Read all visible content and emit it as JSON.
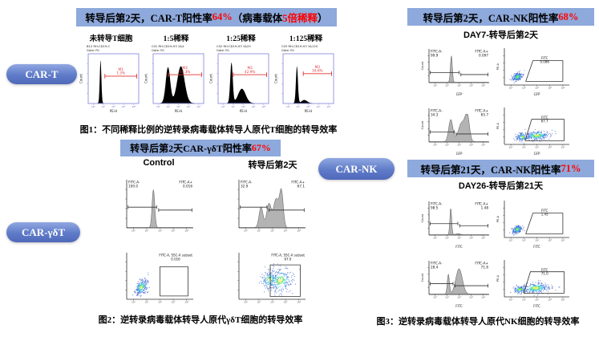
{
  "pills": {
    "car_t": "CAR-T",
    "car_gdt": "CAR-γδT",
    "car_nk": "CAR-NK"
  },
  "fig1": {
    "title_parts": {
      "p1": "转导后第2天，CAR-T阳性率",
      "p2": "64%",
      "p3": "（病毒载体",
      "p4": "5倍稀释",
      "p5": "）"
    },
    "col_labels": [
      "未转导T细胞",
      "1:5稀释",
      "1:25稀释",
      "1:125稀释"
    ],
    "caption": "图1：不同稀释比例的逆转录病毒载体转导人原代T细胞的转导效率"
  },
  "fig2": {
    "title_parts": {
      "p1": "转导后第2天CAR-γδT阳性率",
      "p2": "67%"
    },
    "col_control": "Control",
    "col_day2": "转导后第2天",
    "caption": "图2：逆转录病毒载体转导人原代γδT细胞的转导效率"
  },
  "fig3": {
    "title_day2_parts": {
      "p1": "转导后第2天，CAR-NK阳性率",
      "p2": "68%"
    },
    "subtitle_day7": "DAY7-转导后第2天",
    "title_day21_parts": {
      "p1": "转导后第21天，CAR-NK阳性率",
      "p2": "71%"
    },
    "subtitle_day26": "DAY26-转导后第21天",
    "caption": "图3：逆转录病毒载体转导人原代NK细胞的转导效率"
  },
  "colors": {
    "title_bar_bg": "#8ea9db",
    "highlight_red": "#fe0000",
    "pill_blue": "#5f7bc8",
    "hist_red_frame": "#8d8de0",
    "marker_red": "#e03232",
    "gray_fill": "#b3b3b3"
  },
  "chart_data": {
    "type": "flow-cytometry-figure",
    "panels": {
      "t1": {
        "kind": "hist_red",
        "title": "B12 RH-CD19-C",
        "gate": "Gate: R1",
        "marker": "M1",
        "pct": "1.3%",
        "xlabel": "PE-H",
        "ylabel": "Count",
        "peaks": [
          [
            0.24,
            0.016,
            0.96
          ]
        ],
        "mx": [
          0.33,
          0.96
        ],
        "my": 0.45
      },
      "t2": {
        "kind": "hist_red",
        "title": "C01 RH-CD19-H3 1&4",
        "gate": "Gate: R1",
        "marker": "M3",
        "pct": "64.3%",
        "xlabel": "PE-H",
        "ylabel": "Count",
        "peaks": [
          [
            0.29,
            0.045,
            0.8
          ],
          [
            0.55,
            0.075,
            0.82
          ]
        ],
        "mx": [
          0.3,
          0.96
        ],
        "my": 0.42
      },
      "t3": {
        "kind": "hist_red",
        "title": "C02 RH-CD19-H3 1&25",
        "gate": "Gate: R1",
        "marker": "M3",
        "pct": "42.9%",
        "xlabel": "PE-H",
        "ylabel": "Count",
        "peaks": [
          [
            0.26,
            0.025,
            0.9
          ],
          [
            0.47,
            0.075,
            0.32
          ]
        ],
        "mx": [
          0.3,
          0.96
        ],
        "my": 0.42
      },
      "t4": {
        "kind": "hist_red",
        "title": "C03 RH-CD19-H3 1&125",
        "gate": "Gate: R1",
        "marker": "M3",
        "pct": "16.6%",
        "xlabel": "PE-H",
        "ylabel": "Count",
        "peaks": [
          [
            0.27,
            0.02,
            0.82
          ],
          [
            0.42,
            0.055,
            0.07
          ]
        ],
        "mx": [
          0.4,
          0.96
        ],
        "my": 0.4
      },
      "g1": {
        "kind": "hist_gray",
        "neg_label": "FITC-A-",
        "neg": "100.0",
        "pos_label": "FITC-A+",
        "pos": "0.016",
        "peaks": [
          [
            0.4,
            0.02,
            0.96
          ]
        ],
        "gates": [
          [
            0.02,
            0.45,
            0.57
          ],
          [
            0.48,
            0.98,
            0.63
          ]
        ],
        "xlabel": "",
        "ylabel": ""
      },
      "g2": {
        "kind": "hist_gray",
        "neg_label": "FITC-A-",
        "neg": "32.9",
        "pos_label": "FITC-A+",
        "pos": "67.1",
        "peaks": [
          [
            0.33,
            0.03,
            0.52
          ],
          [
            0.45,
            0.035,
            0.6
          ],
          [
            0.56,
            0.04,
            0.72
          ],
          [
            0.64,
            0.028,
            0.88
          ]
        ],
        "gates": [
          [
            0.02,
            0.42,
            0.57
          ],
          [
            0.45,
            0.98,
            0.63
          ]
        ],
        "xlabel": "",
        "ylabel": ""
      },
      "s1": {
        "kind": "scatter",
        "label": "FITC-A, SSC-A subset",
        "value": "0.016",
        "anchor": "end",
        "seed": 11,
        "clusters": [
          [
            0.22,
            0.26,
            0.045,
            0.08,
            0.6,
            260
          ]
        ],
        "gate": [
          [
            0.5,
            0.3
          ],
          [
            0.92,
            0.3
          ],
          [
            0.92,
            0.93
          ],
          [
            0.5,
            0.93
          ]
        ],
        "xlabel": "",
        "ylabel": ""
      },
      "s2": {
        "kind": "scatter",
        "label": "FITC-A, SSC-A subset",
        "value": "67.0",
        "anchor": "end",
        "seed": 23,
        "clusters": [
          [
            0.46,
            0.42,
            0.06,
            0.1,
            0.3,
            180
          ],
          [
            0.62,
            0.4,
            0.09,
            0.13,
            0.2,
            260
          ]
        ],
        "gate": [
          [
            0.47,
            0.26
          ],
          [
            0.92,
            0.26
          ],
          [
            0.92,
            0.94
          ],
          [
            0.47,
            0.94
          ]
        ],
        "xlabel": "",
        "ylabel": ""
      },
      "n1h": {
        "kind": "hist_gray",
        "neg_label": "FITC-A-",
        "neg": "99.9",
        "pos_label": "FITC-A+",
        "pos": "0.097",
        "peaks": [
          [
            0.37,
            0.016,
            0.96
          ]
        ],
        "gates": [
          [
            0.02,
            0.5,
            0.7
          ],
          [
            0.53,
            0.98,
            0.76
          ]
        ],
        "xlabel": "GFP",
        "ylabel": "Count"
      },
      "n1s": {
        "kind": "scatter",
        "label": "FITC",
        "value": "0.086",
        "anchor": "mid",
        "lx": 0.62,
        "ly": 0.3,
        "seed": 31,
        "clusters": [
          [
            0.2,
            0.22,
            0.035,
            0.05,
            0.5,
            240
          ]
        ],
        "gate": [
          [
            0.44,
            0.34
          ],
          [
            0.9,
            0.34
          ],
          [
            0.9,
            0.9
          ],
          [
            0.33,
            0.9
          ]
        ],
        "xlabel": "GFP",
        "ylabel": "PE-A"
      },
      "n2h": {
        "kind": "hist_gray",
        "neg_label": "FITC-A-",
        "neg": "34.3",
        "pos_label": "FITC-A+",
        "pos": "65.7",
        "peaks": [
          [
            0.36,
            0.035,
            0.8
          ],
          [
            0.55,
            0.06,
            0.7
          ],
          [
            0.64,
            0.035,
            0.82
          ]
        ],
        "gates": [
          [
            0.02,
            0.42,
            0.7
          ],
          [
            0.45,
            0.98,
            0.76
          ]
        ],
        "xlabel": "GFP",
        "ylabel": "Count"
      },
      "n2s": {
        "kind": "scatter",
        "label": "FITC",
        "value": "67.7",
        "anchor": "mid",
        "lx": 0.62,
        "ly": 0.3,
        "seed": 37,
        "clusters": [
          [
            0.28,
            0.2,
            0.05,
            0.05,
            0.2,
            150
          ],
          [
            0.5,
            0.24,
            0.1,
            0.06,
            0.1,
            280
          ]
        ],
        "gate": [
          [
            0.42,
            0.32
          ],
          [
            0.92,
            0.32
          ],
          [
            0.92,
            0.9
          ],
          [
            0.32,
            0.9
          ]
        ],
        "xlabel": "GFP",
        "ylabel": "PE-A"
      },
      "n3h": {
        "kind": "hist_gray",
        "neg_label": "FITC-A-",
        "neg": "98.5",
        "pos_label": "FITC-A+",
        "pos": "1.48",
        "peaks": [
          [
            0.36,
            0.015,
            0.96
          ],
          [
            0.48,
            0.04,
            0.04
          ]
        ],
        "gates": [
          [
            0.02,
            0.48,
            0.66
          ],
          [
            0.51,
            0.98,
            0.72
          ]
        ],
        "xlabel": "FITC",
        "ylabel": "Count"
      },
      "n3s": {
        "kind": "scatter",
        "label": "FITC",
        "value": "1.45",
        "anchor": "mid",
        "lx": 0.62,
        "ly": 0.3,
        "seed": 41,
        "clusters": [
          [
            0.2,
            0.22,
            0.035,
            0.05,
            0.5,
            240
          ]
        ],
        "gate": [
          [
            0.44,
            0.34
          ],
          [
            0.9,
            0.34
          ],
          [
            0.9,
            0.9
          ],
          [
            0.33,
            0.9
          ]
        ],
        "xlabel": "FITC",
        "ylabel": "PE-A"
      },
      "n4h": {
        "kind": "hist_gray",
        "neg_label": "FITC-A-",
        "neg": "28.4",
        "pos_label": "FITC-A+",
        "pos": "71.6",
        "peaks": [
          [
            0.32,
            0.018,
            0.72
          ],
          [
            0.5,
            0.055,
            0.92
          ]
        ],
        "gates": [
          [
            0.02,
            0.4,
            0.68
          ],
          [
            0.43,
            0.98,
            0.74
          ]
        ],
        "xlabel": "FITC",
        "ylabel": "Count"
      },
      "n4s": {
        "kind": "scatter",
        "label": "FITC",
        "value": "71.0",
        "anchor": "mid",
        "lx": 0.62,
        "ly": 0.3,
        "seed": 43,
        "clusters": [
          [
            0.24,
            0.2,
            0.05,
            0.05,
            0.2,
            140
          ],
          [
            0.48,
            0.24,
            0.11,
            0.07,
            0.1,
            300
          ]
        ],
        "gate": [
          [
            0.4,
            0.32
          ],
          [
            0.92,
            0.32
          ],
          [
            0.92,
            0.9
          ],
          [
            0.3,
            0.9
          ]
        ],
        "xlabel": "FITC",
        "ylabel": "PE-A"
      }
    }
  }
}
